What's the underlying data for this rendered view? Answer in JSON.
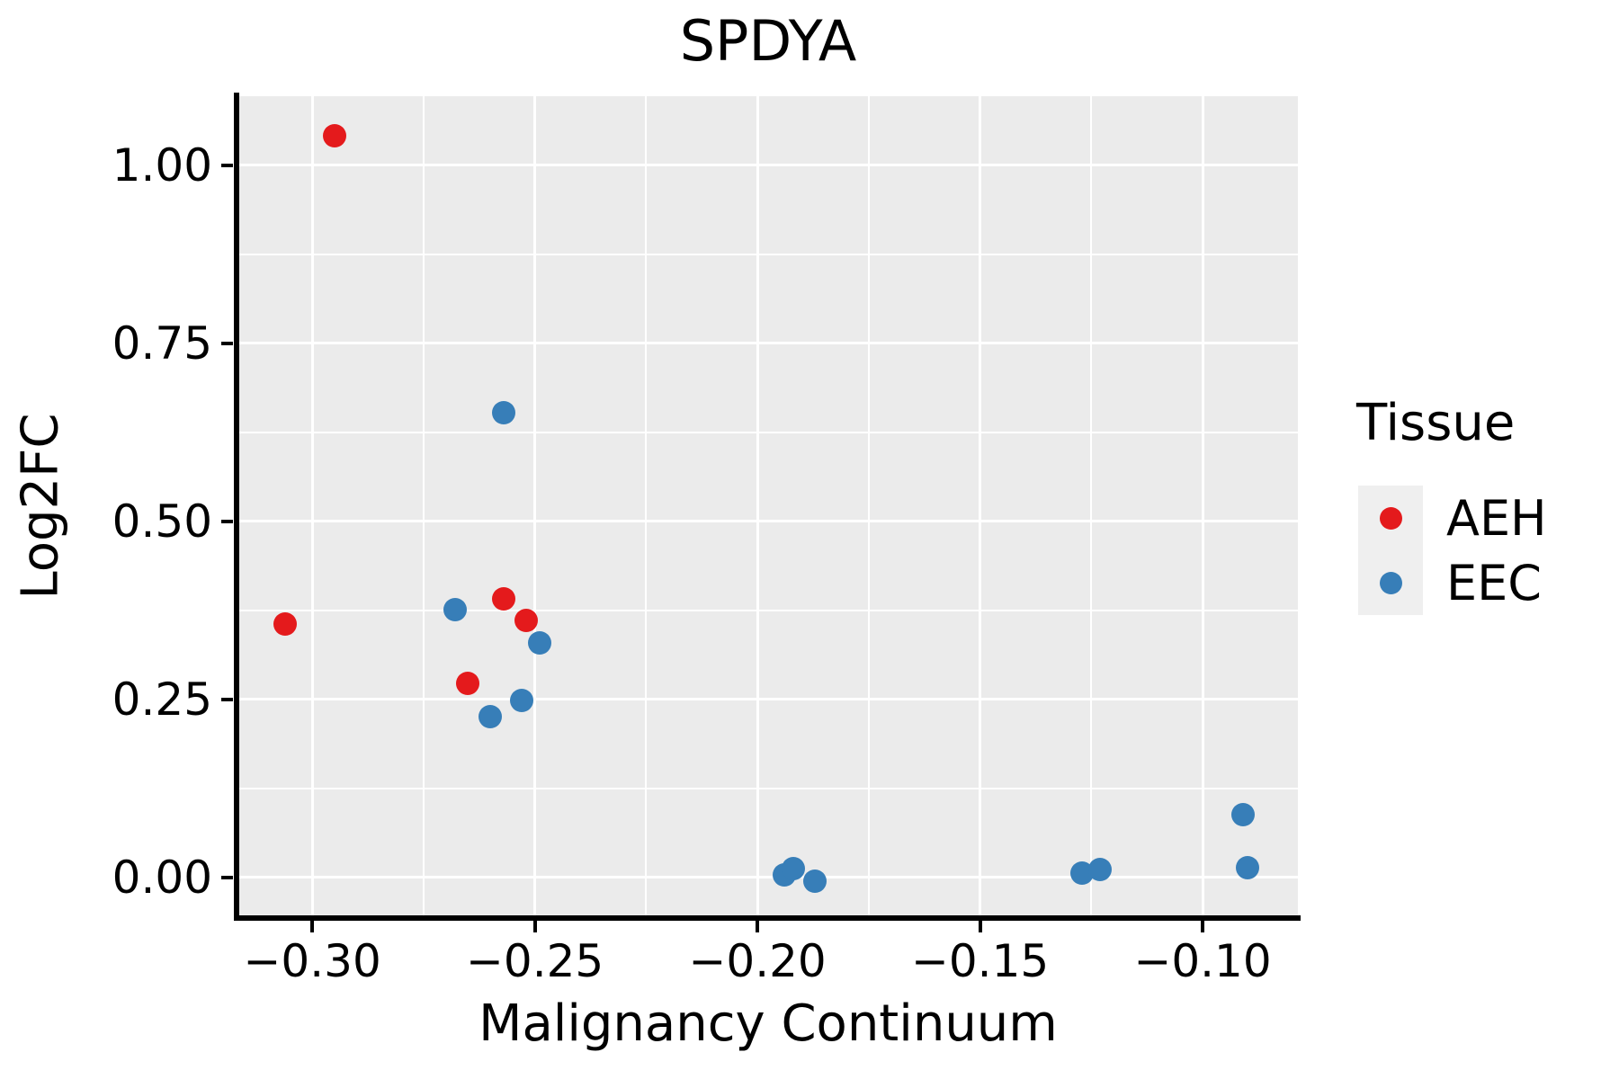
{
  "figure": {
    "title": "SPDYA",
    "legend": {
      "title": "Tissue",
      "entries": [
        {
          "label": "AEH",
          "color": "#e41a1c"
        },
        {
          "label": "EEC",
          "color": "#377eb8"
        }
      ]
    }
  },
  "chart_data": {
    "type": "scatter",
    "title": "SPDYA",
    "xlabel": "Malignancy Continuum",
    "ylabel": "Log2FC",
    "xlim": [
      -0.3166,
      -0.0786
    ],
    "ylim": [
      -0.0556,
      1.0972
    ],
    "x_ticks": {
      "values": [
        -0.3,
        -0.25,
        -0.2,
        -0.15,
        -0.1
      ],
      "labels": [
        "−0.30",
        "−0.25",
        "−0.20",
        "−0.15",
        "−0.10"
      ],
      "minor": [
        -0.275,
        -0.225,
        -0.175,
        -0.125
      ]
    },
    "y_ticks": {
      "values": [
        1.0,
        0.75,
        0.5,
        0.25,
        0.0
      ],
      "labels": [
        "1.00",
        "0.75",
        "0.50",
        "0.25",
        "0.00"
      ],
      "minor": [
        0.875,
        0.625,
        0.375,
        0.125
      ]
    },
    "grid": {
      "color": "#ffffff",
      "panel_bg": "#ebebeb",
      "legend_key_bg": "#efefef"
    },
    "legend_position": "right",
    "series": [
      {
        "name": "AEH",
        "color": "#e41a1c",
        "points": [
          [
            -0.295,
            1.042
          ],
          [
            -0.306,
            0.356
          ],
          [
            -0.265,
            0.273
          ],
          [
            -0.257,
            0.391
          ],
          [
            -0.252,
            0.361
          ]
        ]
      },
      {
        "name": "EEC",
        "color": "#377eb8",
        "points": [
          [
            -0.268,
            0.376
          ],
          [
            -0.26,
            0.226
          ],
          [
            -0.257,
            0.653
          ],
          [
            -0.253,
            0.249
          ],
          [
            -0.249,
            0.33
          ],
          [
            -0.194,
            0.004
          ],
          [
            -0.192,
            0.012
          ],
          [
            -0.187,
            -0.005
          ],
          [
            -0.127,
            0.006
          ],
          [
            -0.123,
            0.011
          ],
          [
            -0.091,
            0.088
          ],
          [
            -0.09,
            0.014
          ]
        ]
      }
    ]
  }
}
